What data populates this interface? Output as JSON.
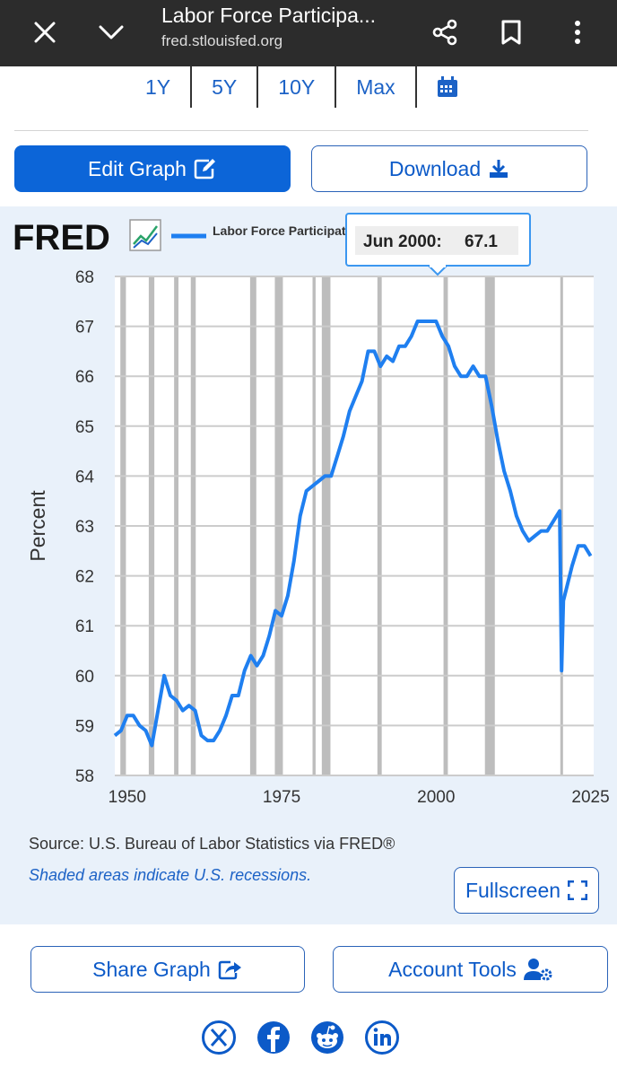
{
  "topbar": {
    "title": "Labor Force Participa...",
    "url": "fred.stlouisfed.org"
  },
  "ranges": [
    "1Y",
    "5Y",
    "10Y",
    "Max"
  ],
  "buttons": {
    "edit": "Edit Graph",
    "download": "Download",
    "fullscreen": "Fullscreen",
    "share": "Share Graph",
    "account": "Account Tools"
  },
  "logo": "FRED",
  "footer": {
    "source": "U.S. Bureau of Labor Statistics via FRED®",
    "shaded": "Shaded areas indicate U.S. recessions."
  },
  "tooltip": {
    "date": "Jun 2000:",
    "value": "67.1"
  },
  "colors": {
    "series": "#1f7ff0",
    "accent": "#0c65d8",
    "panel": "#e9f1fa"
  },
  "chart_data": {
    "type": "line",
    "ylabel": "Percent",
    "ylim": [
      58,
      68
    ],
    "xlim": [
      1948,
      2025.5
    ],
    "yticks": [
      "58",
      "59",
      "60",
      "61",
      "62",
      "63",
      "64",
      "65",
      "66",
      "67",
      "68"
    ],
    "xticks": [
      "1950",
      "1975",
      "2000",
      "2025"
    ],
    "series": [
      {
        "name": "Labor Force Participation Rate",
        "x": [
          1948,
          1949,
          1950,
          1951,
          1952,
          1953,
          1954,
          1955,
          1956,
          1957,
          1958,
          1959,
          1960,
          1961,
          1962,
          1963,
          1964,
          1965,
          1966,
          1967,
          1968,
          1969,
          1970,
          1971,
          1972,
          1973,
          1974,
          1975,
          1976,
          1977,
          1978,
          1979,
          1980,
          1981,
          1982,
          1983,
          1984,
          1985,
          1986,
          1987,
          1988,
          1989,
          1990,
          1991,
          1992,
          1993,
          1994,
          1995,
          1996,
          1997,
          1998,
          1999,
          2000,
          2001,
          2002,
          2003,
          2004,
          2005,
          2006,
          2007,
          2008,
          2009,
          2010,
          2011,
          2012,
          2013,
          2014,
          2015,
          2016,
          2017,
          2018,
          2019,
          2020,
          2020.3,
          2020.6,
          2021,
          2022,
          2023,
          2024,
          2025
        ],
        "values": [
          58.8,
          58.9,
          59.2,
          59.2,
          59.0,
          58.9,
          58.6,
          59.3,
          60.0,
          59.6,
          59.5,
          59.3,
          59.4,
          59.3,
          58.8,
          58.7,
          58.7,
          58.9,
          59.2,
          59.6,
          59.6,
          60.1,
          60.4,
          60.2,
          60.4,
          60.8,
          61.3,
          61.2,
          61.6,
          62.3,
          63.2,
          63.7,
          63.8,
          63.9,
          64.0,
          64.0,
          64.4,
          64.8,
          65.3,
          65.6,
          65.9,
          66.5,
          66.5,
          66.2,
          66.4,
          66.3,
          66.6,
          66.6,
          66.8,
          67.1,
          67.1,
          67.1,
          67.1,
          66.8,
          66.6,
          66.2,
          66.0,
          66.0,
          66.2,
          66.0,
          66.0,
          65.4,
          64.7,
          64.1,
          63.7,
          63.2,
          62.9,
          62.7,
          62.8,
          62.9,
          62.9,
          63.1,
          63.3,
          60.1,
          61.5,
          61.7,
          62.2,
          62.6,
          62.6,
          62.4
        ]
      }
    ],
    "recessions": [
      [
        1948.9,
        1949.8
      ],
      [
        1953.5,
        1954.4
      ],
      [
        1957.6,
        1958.3
      ],
      [
        1960.3,
        1961.1
      ],
      [
        1969.9,
        1970.9
      ],
      [
        1973.9,
        1975.2
      ],
      [
        1980.0,
        1980.5
      ],
      [
        1981.5,
        1982.9
      ],
      [
        1990.5,
        1991.2
      ],
      [
        2001.2,
        2001.9
      ],
      [
        2007.9,
        2009.5
      ],
      [
        2020.1,
        2020.3
      ]
    ]
  }
}
